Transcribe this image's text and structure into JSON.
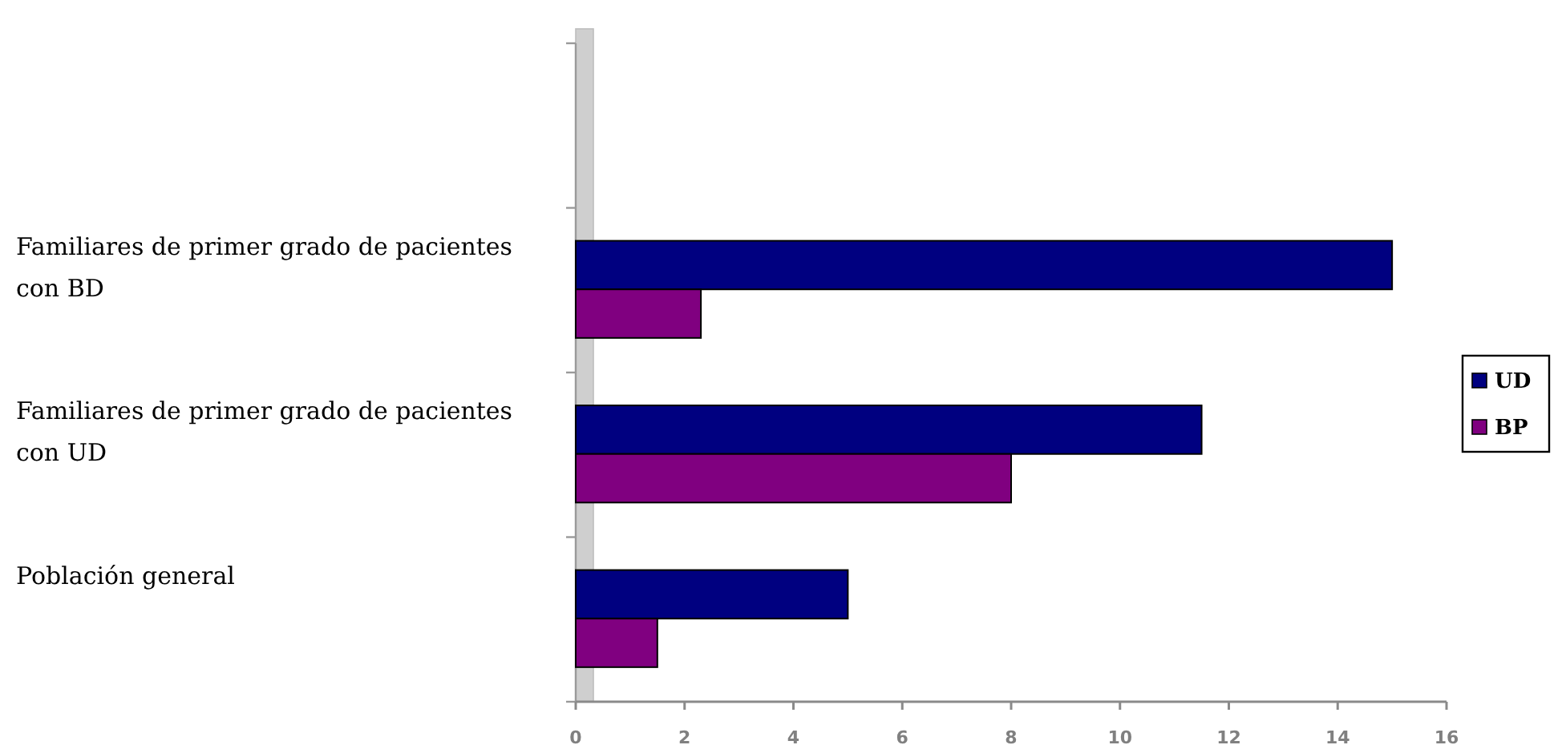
{
  "chart_data": {
    "type": "bar",
    "orientation": "horizontal",
    "categories": [
      null,
      "Familiares de primer grado de pacientes con BD",
      "Familiares de primer grado de pacientes con UD",
      "Población general"
    ],
    "series": [
      {
        "name": "UD",
        "color": "#000080",
        "values": [
          null,
          15,
          11.5,
          5
        ]
      },
      {
        "name": "BP",
        "color": "#800080",
        "values": [
          null,
          2.3,
          8,
          1.5
        ]
      }
    ],
    "xlim": [
      0,
      16
    ],
    "xticks": [
      0,
      2,
      4,
      6,
      8,
      10,
      12,
      14,
      16
    ],
    "legend": "right"
  }
}
